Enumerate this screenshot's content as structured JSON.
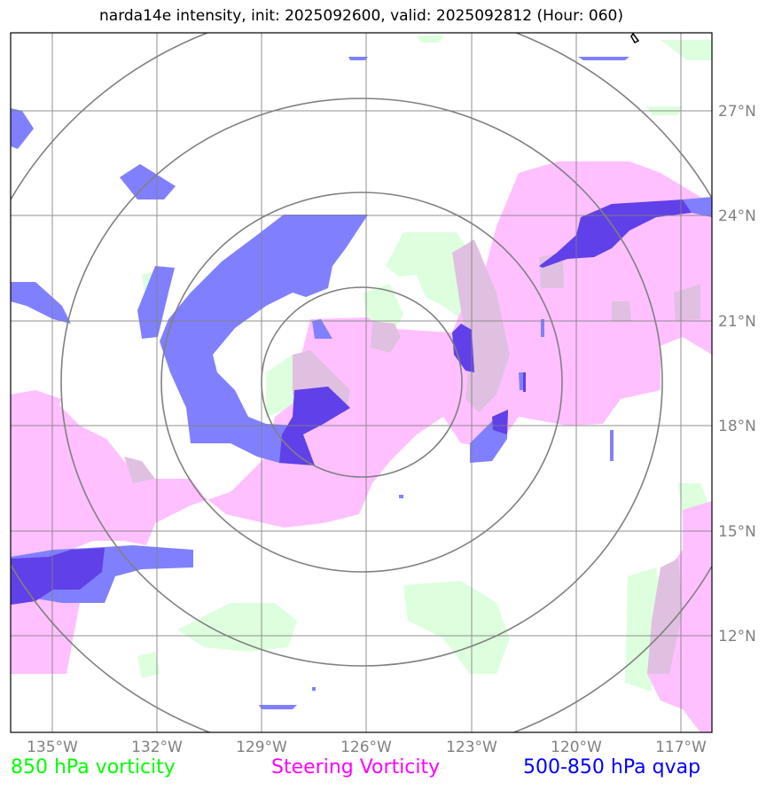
{
  "title": "narda14e intensity, init: 2025092600, valid: 2025092812 (Hour: 060)",
  "lat_labels": [
    "27°N",
    "24°N",
    "21°N",
    "18°N",
    "15°N",
    "12°N"
  ],
  "lon_labels": [
    "135°W",
    "132°W",
    "129°W",
    "126°W",
    "123°W",
    "120°W",
    "117°W"
  ],
  "legend": {
    "vort850": "850 hPa vorticity",
    "steering": "Steering Vorticity",
    "qvap": "500-850 hPa qvap"
  },
  "colors": {
    "vort850": "#00ff00",
    "steering": "#ff00ff",
    "qvap": "#0000ff",
    "grid": "#808080",
    "range_rings": "#808080"
  },
  "map_extent": {
    "lon": [
      -136.2,
      -116.2
    ],
    "lat": [
      9.9,
      29.9
    ]
  },
  "storm_center": {
    "lon": -126.1,
    "lat": 19.3
  }
}
